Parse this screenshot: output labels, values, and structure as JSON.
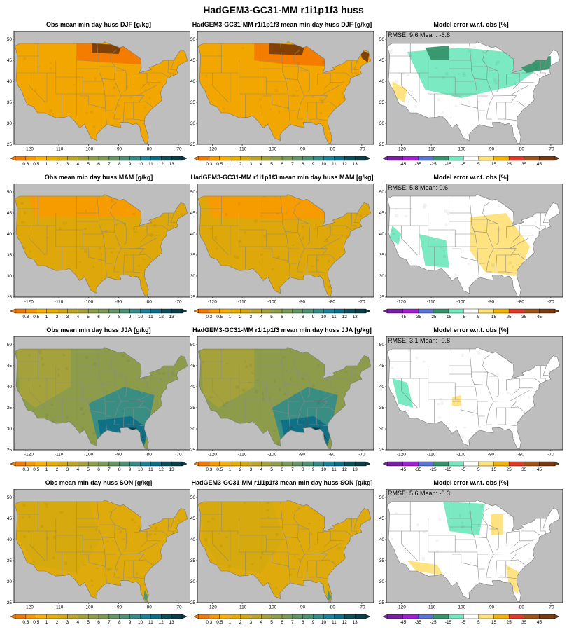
{
  "title": "HadGEM3-GC31-MM r1i1p1f3 huss",
  "colors": {
    "ocean": "#bebebe",
    "land_default": "#e8ad00",
    "state_line": "#8a8a8a"
  },
  "colorbars": {
    "absolute": {
      "labels": [
        "0.3",
        "0.5",
        "1",
        "2",
        "3",
        "4",
        "5",
        "6",
        "7",
        "8",
        "9",
        "10",
        "11",
        "12",
        "13"
      ],
      "colors": [
        "#f37a00",
        "#f79a00",
        "#fbb000",
        "#e8ad00",
        "#d5a90f",
        "#bea628",
        "#a6a23a",
        "#8f9f4a",
        "#7b9b57",
        "#659665",
        "#4e9274",
        "#368c86",
        "#1c839a",
        "#0d6f86",
        "#0b4f5c",
        "#0a3e48"
      ]
    },
    "error": {
      "labels": [
        "-45",
        "-35",
        "-25",
        "-15",
        "-5",
        "5",
        "15",
        "25",
        "35",
        "45"
      ],
      "colors": [
        "#7b1fa2",
        "#a21fd6",
        "#5a74d8",
        "#35946a",
        "#74e8be",
        "#ffffff",
        "#ffe27a",
        "#f2b400",
        "#e53928",
        "#a05318",
        "#7a3a10"
      ]
    }
  },
  "axes": {
    "x_ticks": [
      "-120",
      "-110",
      "-100",
      "-90",
      "-80",
      "-70"
    ],
    "y_ticks": [
      "50",
      "45",
      "40",
      "35",
      "30",
      "25"
    ]
  },
  "rows": [
    {
      "season": "DJF",
      "obs": {
        "title": "Obs mean min day  huss DJF [g/kg]",
        "fill": "#f2a600"
      },
      "model": {
        "title": "HadGEM3-GC31-MM r1i1p1f3 mean min day huss DJF [g/kg]",
        "fill": "#f2a600"
      },
      "error": {
        "title": "Model error w.r.t. obs [%]",
        "stats": "RMSE: 9.6   Mean: -6.8",
        "fill": "#ffffff"
      }
    },
    {
      "season": "MAM",
      "obs": {
        "title": "Obs mean min day  huss MAM [g/kg]",
        "fill": "#dea80a"
      },
      "model": {
        "title": "HadGEM3-GC31-MM r1i1p1f3 mean min day huss MAM [g/kg]",
        "fill": "#dea80a"
      },
      "error": {
        "title": "Model error w.r.t. obs [%]",
        "stats": "RMSE: 5.8   Mean: 0.6",
        "fill": "#ffffff"
      }
    },
    {
      "season": "JJA",
      "obs": {
        "title": "Obs mean min day  huss JJA [g/kg]",
        "fill": "#8d9c4b"
      },
      "model": {
        "title": "HadGEM3-GC31-MM r1i1p1f3 mean min day huss JJA [g/kg]",
        "fill": "#8d9c4b"
      },
      "error": {
        "title": "Model error w.r.t. obs [%]",
        "stats": "RMSE: 3.1   Mean: -0.8",
        "fill": "#ffffff"
      }
    },
    {
      "season": "SON",
      "obs": {
        "title": "Obs mean min day  huss SON [g/kg]",
        "fill": "#dfaa0c"
      },
      "model": {
        "title": "HadGEM3-GC31-MM r1i1p1f3 mean min day huss SON [g/kg]",
        "fill": "#dfaa0c"
      },
      "error": {
        "title": "Model error w.r.t. obs [%]",
        "stats": "RMSE: 5.6   Mean: -0.3",
        "fill": "#ffffff"
      }
    }
  ],
  "chart_data": {
    "type": "heatmap",
    "title": "HadGEM3-GC31-MM r1i1p1f3 huss",
    "panel_types": [
      "obs",
      "model",
      "error"
    ],
    "x_ticks_deg": [
      -120,
      -110,
      -100,
      -90,
      -80,
      -70
    ],
    "y_ticks_deg": [
      50,
      45,
      40,
      35,
      30,
      25
    ],
    "xlim": [
      -125,
      -66
    ],
    "ylim": [
      25,
      52
    ],
    "absolute_levels_gkg": [
      0.3,
      0.5,
      1,
      2,
      3,
      4,
      5,
      6,
      7,
      8,
      9,
      10,
      11,
      12,
      13
    ],
    "error_levels_pct": [
      -45,
      -35,
      -25,
      -15,
      -5,
      5,
      15,
      25,
      35,
      45
    ],
    "error_stats": [
      {
        "season": "DJF",
        "rmse": 9.6,
        "mean": -6.8
      },
      {
        "season": "MAM",
        "rmse": 5.8,
        "mean": 0.6
      },
      {
        "season": "JJA",
        "rmse": 3.1,
        "mean": -0.8
      },
      {
        "season": "SON",
        "rmse": 5.6,
        "mean": -0.3
      }
    ]
  }
}
